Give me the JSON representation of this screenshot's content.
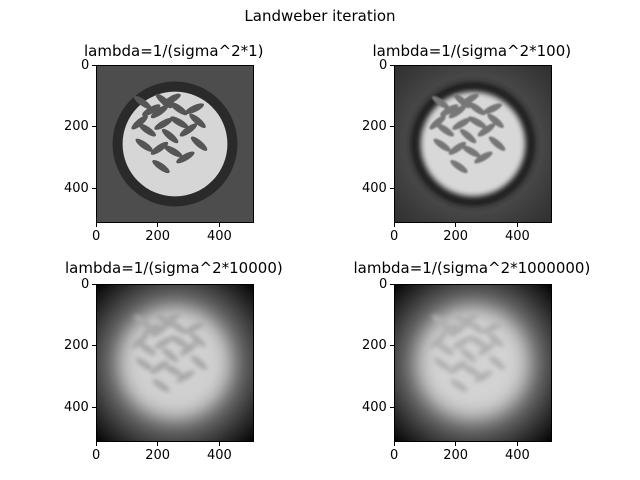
{
  "figure": {
    "title": "Landweber iteration"
  },
  "chart_data": [
    {
      "type": "heatmap",
      "title": "lambda=1/(sigma^2*1)",
      "colormap": "gray",
      "image_size": [
        512,
        512
      ],
      "xlim": [
        0,
        512
      ],
      "ylim": [
        512,
        0
      ],
      "xticks": [
        0,
        200,
        400
      ],
      "yticks": [
        0,
        200,
        400
      ],
      "xtick_labels": [
        "0",
        "200",
        "400"
      ],
      "ytick_labels": [
        "0",
        "200",
        "400"
      ],
      "blur_level": 0
    },
    {
      "type": "heatmap",
      "title": "lambda=1/(sigma^2*100)",
      "colormap": "gray",
      "image_size": [
        512,
        512
      ],
      "xlim": [
        0,
        512
      ],
      "ylim": [
        512,
        0
      ],
      "xticks": [
        0,
        200,
        400
      ],
      "yticks": [
        0,
        200,
        400
      ],
      "xtick_labels": [
        "0",
        "200",
        "400"
      ],
      "ytick_labels": [
        "0",
        "200",
        "400"
      ],
      "blur_level": 1
    },
    {
      "type": "heatmap",
      "title": "lambda=1/(sigma^2*10000)",
      "colormap": "gray",
      "image_size": [
        512,
        512
      ],
      "xlim": [
        0,
        512
      ],
      "ylim": [
        512,
        0
      ],
      "xticks": [
        0,
        200,
        400
      ],
      "yticks": [
        0,
        200,
        400
      ],
      "xtick_labels": [
        "0",
        "200",
        "400"
      ],
      "ytick_labels": [
        "0",
        "200",
        "400"
      ],
      "blur_level": 2
    },
    {
      "type": "heatmap",
      "title": "lambda=1/(sigma^2*1000000)",
      "colormap": "gray",
      "image_size": [
        512,
        512
      ],
      "xlim": [
        0,
        512
      ],
      "ylim": [
        512,
        0
      ],
      "xticks": [
        0,
        200,
        400
      ],
      "yticks": [
        0,
        200,
        400
      ],
      "xtick_labels": [
        "0",
        "200",
        "400"
      ],
      "ytick_labels": [
        "0",
        "200",
        "400"
      ],
      "blur_level": 3
    }
  ]
}
